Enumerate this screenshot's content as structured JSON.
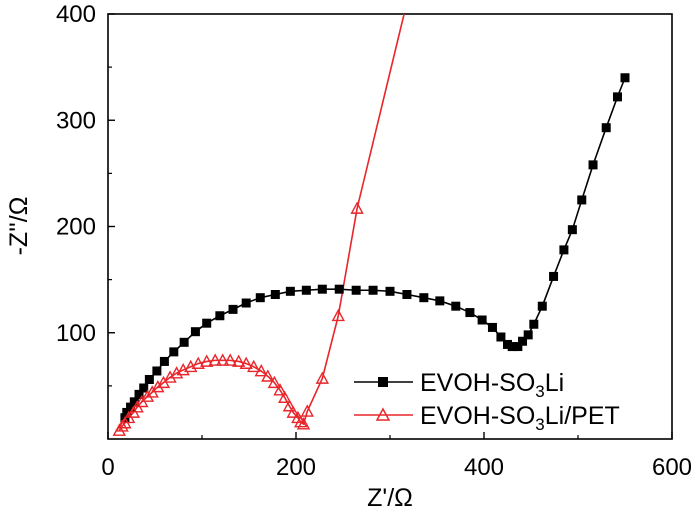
{
  "chart_data": {
    "type": "scatter",
    "title": "",
    "xlabel": "Z'/Ω",
    "ylabel": "-Z''/Ω",
    "xlim": [
      0,
      600
    ],
    "ylim": [
      0,
      400
    ],
    "xticks": [
      "0",
      "200",
      "400",
      "600"
    ],
    "yticks": [
      "100",
      "200",
      "300",
      "400"
    ],
    "grid": false,
    "legend_position": "lower-right",
    "series": [
      {
        "name": "EVOH-SO₃Li",
        "legend_main": "EVOH-SO",
        "legend_sub": "3",
        "legend_tail": "Li",
        "color": "#000000",
        "marker": "filled-square",
        "points": [
          [
            18,
            20
          ],
          [
            20,
            25
          ],
          [
            24,
            30
          ],
          [
            28,
            35
          ],
          [
            33,
            42
          ],
          [
            38,
            48
          ],
          [
            44,
            56
          ],
          [
            52,
            64
          ],
          [
            60,
            73
          ],
          [
            70,
            82
          ],
          [
            81,
            91
          ],
          [
            93,
            101
          ],
          [
            105,
            109
          ],
          [
            119,
            116
          ],
          [
            133,
            122
          ],
          [
            147,
            128
          ],
          [
            162,
            133
          ],
          [
            178,
            136
          ],
          [
            194,
            139
          ],
          [
            211,
            140
          ],
          [
            228,
            141
          ],
          [
            246,
            141
          ],
          [
            264,
            140
          ],
          [
            282,
            140
          ],
          [
            300,
            139
          ],
          [
            318,
            136
          ],
          [
            336,
            133
          ],
          [
            353,
            130
          ],
          [
            370,
            125
          ],
          [
            385,
            119
          ],
          [
            398,
            112
          ],
          [
            409,
            105
          ],
          [
            418,
            96
          ],
          [
            425,
            89
          ],
          [
            430,
            87
          ],
          [
            436,
            87
          ],
          [
            441,
            92
          ],
          [
            447,
            98
          ],
          [
            453,
            108
          ],
          [
            462,
            125
          ],
          [
            474,
            153
          ],
          [
            485,
            178
          ],
          [
            494,
            197
          ],
          [
            504,
            225
          ],
          [
            516,
            258
          ],
          [
            530,
            293
          ],
          [
            542,
            322
          ],
          [
            550,
            340
          ]
        ]
      },
      {
        "name": "EVOH-SO₃Li/PET",
        "legend_main": "EVOH-SO",
        "legend_sub": "3",
        "legend_tail": "Li/PET",
        "color": "#e8262b",
        "marker": "open-triangle",
        "points": [
          [
            12,
            8
          ],
          [
            15,
            12
          ],
          [
            18,
            15
          ],
          [
            22,
            20
          ],
          [
            27,
            25
          ],
          [
            31,
            30
          ],
          [
            36,
            35
          ],
          [
            42,
            40
          ],
          [
            47,
            44
          ],
          [
            53,
            49
          ],
          [
            59,
            53
          ],
          [
            66,
            58
          ],
          [
            73,
            62
          ],
          [
            80,
            65
          ],
          [
            88,
            68
          ],
          [
            96,
            71
          ],
          [
            105,
            73
          ],
          [
            114,
            74
          ],
          [
            122,
            74
          ],
          [
            130,
            74
          ],
          [
            139,
            73
          ],
          [
            147,
            71
          ],
          [
            155,
            68
          ],
          [
            163,
            64
          ],
          [
            170,
            59
          ],
          [
            177,
            53
          ],
          [
            183,
            46
          ],
          [
            188,
            39
          ],
          [
            193,
            31
          ],
          [
            197,
            25
          ],
          [
            202,
            20
          ],
          [
            205,
            16
          ],
          [
            208,
            14
          ],
          [
            212,
            26
          ],
          [
            228,
            57
          ],
          [
            245,
            116
          ],
          [
            265,
            217
          ],
          [
            315,
            400
          ]
        ],
        "marked_points": [
          [
            12,
            8
          ],
          [
            15,
            12
          ],
          [
            18,
            15
          ],
          [
            22,
            20
          ],
          [
            27,
            25
          ],
          [
            31,
            30
          ],
          [
            36,
            35
          ],
          [
            42,
            40
          ],
          [
            47,
            44
          ],
          [
            53,
            49
          ],
          [
            59,
            53
          ],
          [
            66,
            58
          ],
          [
            73,
            62
          ],
          [
            80,
            65
          ],
          [
            88,
            68
          ],
          [
            96,
            71
          ],
          [
            105,
            73
          ],
          [
            114,
            74
          ],
          [
            122,
            74
          ],
          [
            130,
            74
          ],
          [
            139,
            73
          ],
          [
            147,
            71
          ],
          [
            155,
            68
          ],
          [
            163,
            64
          ],
          [
            170,
            59
          ],
          [
            177,
            53
          ],
          [
            183,
            46
          ],
          [
            188,
            39
          ],
          [
            193,
            31
          ],
          [
            197,
            25
          ],
          [
            202,
            20
          ],
          [
            205,
            16
          ],
          [
            208,
            14
          ],
          [
            212,
            26
          ],
          [
            228,
            57
          ],
          [
            245,
            116
          ],
          [
            265,
            217
          ]
        ]
      }
    ]
  }
}
